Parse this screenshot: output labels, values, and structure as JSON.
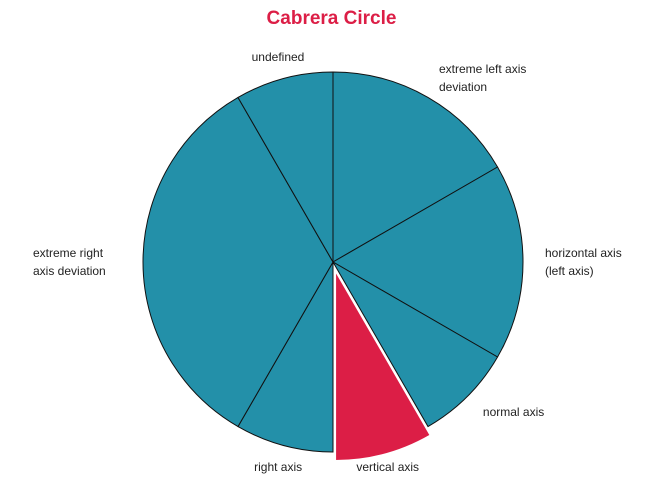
{
  "chart_data": {
    "type": "pie",
    "title": "Cabrera Circle",
    "categories": [
      "extreme left axis deviation",
      "horizontal axis (left axis)",
      "normal axis",
      "vertical axis",
      "right axis",
      "extreme right axis deviation",
      "undefined"
    ],
    "values": [
      2,
      2,
      1,
      1,
      1,
      4,
      1
    ],
    "colors": [
      "#2390a9",
      "#2390a9",
      "#2390a9",
      "#dc1e46",
      "#2390a9",
      "#2390a9",
      "#2390a9"
    ],
    "exploded": [
      false,
      false,
      false,
      true,
      false,
      false,
      false
    ],
    "title_color": "#dc1e46"
  }
}
